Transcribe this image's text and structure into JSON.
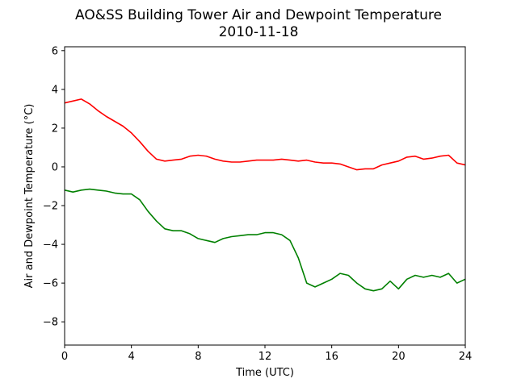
{
  "chart_data": {
    "type": "line",
    "title": "AO&SS Building Tower Air and Dewpoint Temperature",
    "subtitle": "2010-11-18",
    "xlabel": "Time (UTC)",
    "ylabel": "Air and Dewpoint Temperature (°C)",
    "xlim": [
      0,
      24
    ],
    "ylim": [
      -9.2,
      6.2
    ],
    "xticks": [
      0,
      4,
      8,
      12,
      16,
      20,
      24
    ],
    "yticks": [
      -8,
      -6,
      -4,
      -2,
      0,
      2,
      4,
      6
    ],
    "grid": false,
    "legend": "none",
    "series": [
      {
        "color": "#ff0000",
        "x": [
          0,
          0.5,
          1,
          1.5,
          2,
          2.5,
          3,
          3.5,
          4,
          4.5,
          5,
          5.5,
          6,
          6.5,
          7,
          7.5,
          8,
          8.5,
          9,
          9.5,
          10,
          10.5,
          11,
          11.5,
          12,
          12.5,
          13,
          13.5,
          14,
          14.5,
          15,
          15.5,
          16,
          16.5,
          17,
          17.5,
          18,
          18.5,
          19,
          19.5,
          20,
          20.5,
          21,
          21.5,
          22,
          22.5,
          23,
          23.5,
          24
        ],
        "y": [
          3.3,
          3.4,
          3.5,
          3.25,
          2.9,
          2.6,
          2.35,
          2.1,
          1.75,
          1.3,
          0.8,
          0.4,
          0.3,
          0.35,
          0.4,
          0.55,
          0.6,
          0.55,
          0.4,
          0.3,
          0.25,
          0.25,
          0.3,
          0.35,
          0.35,
          0.35,
          0.4,
          0.35,
          0.3,
          0.35,
          0.25,
          0.2,
          0.2,
          0.15,
          0.0,
          -0.15,
          -0.1,
          -0.1,
          0.1,
          0.2,
          0.3,
          0.5,
          0.55,
          0.4,
          0.45,
          0.55,
          0.6,
          0.2,
          0.1
        ]
      },
      {
        "color": "#008000",
        "x": [
          0,
          0.5,
          1,
          1.5,
          2,
          2.5,
          3,
          3.5,
          4,
          4.5,
          5,
          5.5,
          6,
          6.5,
          7,
          7.5,
          8,
          8.5,
          9,
          9.5,
          10,
          10.5,
          11,
          11.5,
          12,
          12.5,
          13,
          13.5,
          14,
          14.5,
          15,
          15.5,
          16,
          16.5,
          17,
          17.5,
          18,
          18.5,
          19,
          19.5,
          20,
          20.5,
          21,
          21.5,
          22,
          22.5,
          23,
          23.5,
          24
        ],
        "y": [
          -1.2,
          -1.3,
          -1.2,
          -1.15,
          -1.2,
          -1.25,
          -1.35,
          -1.4,
          -1.4,
          -1.7,
          -2.3,
          -2.8,
          -3.2,
          -3.3,
          -3.3,
          -3.45,
          -3.7,
          -3.8,
          -3.9,
          -3.7,
          -3.6,
          -3.55,
          -3.5,
          -3.5,
          -3.4,
          -3.4,
          -3.5,
          -3.8,
          -4.7,
          -6.0,
          -6.2,
          -6.0,
          -5.8,
          -5.5,
          -5.6,
          -6.0,
          -6.3,
          -6.4,
          -6.3,
          -5.9,
          -6.3,
          -5.8,
          -5.6,
          -5.7,
          -5.6,
          -5.7,
          -5.5,
          -6.0,
          -5.8
        ]
      }
    ]
  }
}
